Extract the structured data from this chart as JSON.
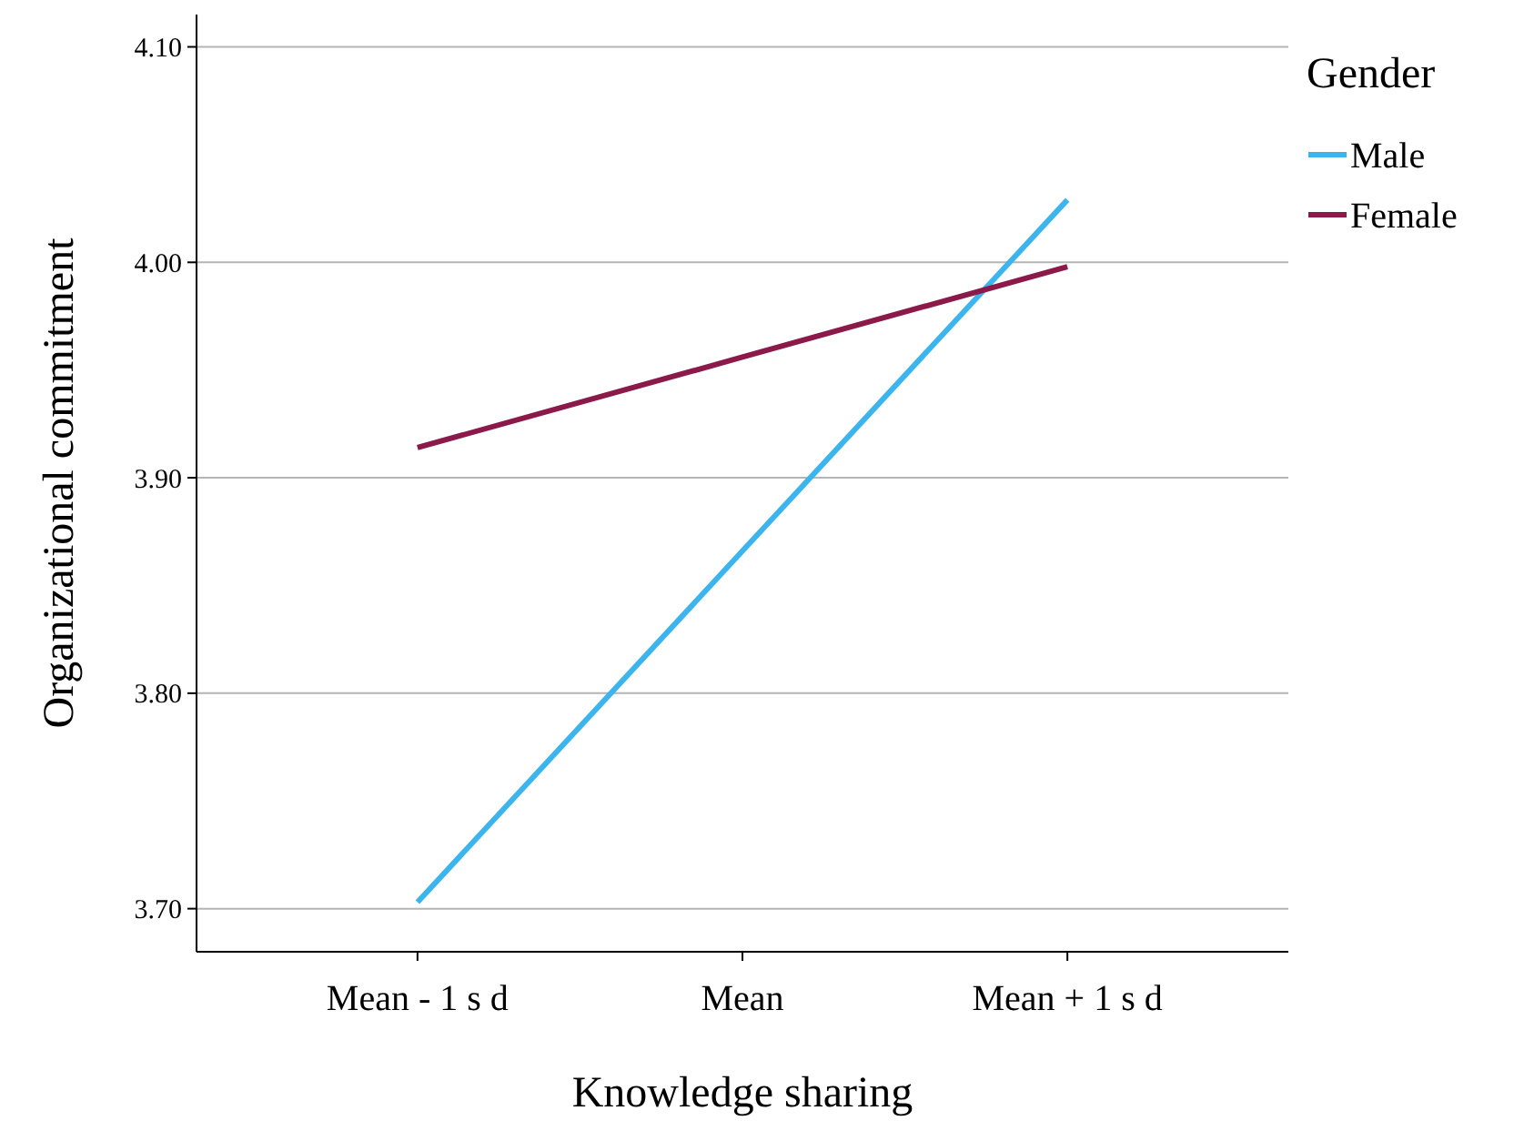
{
  "chart_data": {
    "type": "line",
    "xlabel": "Knowledge sharing",
    "ylabel": "Organizational commitment",
    "legend_title": "Gender",
    "categories": [
      "Mean - 1 s d",
      "Mean",
      "Mean + 1 s d"
    ],
    "series": [
      {
        "name": "Male",
        "color": "#3cb4ee",
        "values": [
          3.703,
          3.866,
          4.029
        ]
      },
      {
        "name": "Female",
        "color": "#8b1a4a",
        "values": [
          3.914,
          3.956,
          3.998
        ]
      }
    ],
    "ylim": [
      3.68,
      4.115
    ],
    "yticks": [
      {
        "value": 3.7,
        "label": "3.70"
      },
      {
        "value": 3.8,
        "label": "3.80"
      },
      {
        "value": 3.9,
        "label": "3.90"
      },
      {
        "value": 4.0,
        "label": "4.00"
      },
      {
        "value": 4.1,
        "label": "4.10"
      }
    ],
    "grid": "y",
    "legend": "right",
    "marker": "none",
    "line_style": "solid"
  }
}
